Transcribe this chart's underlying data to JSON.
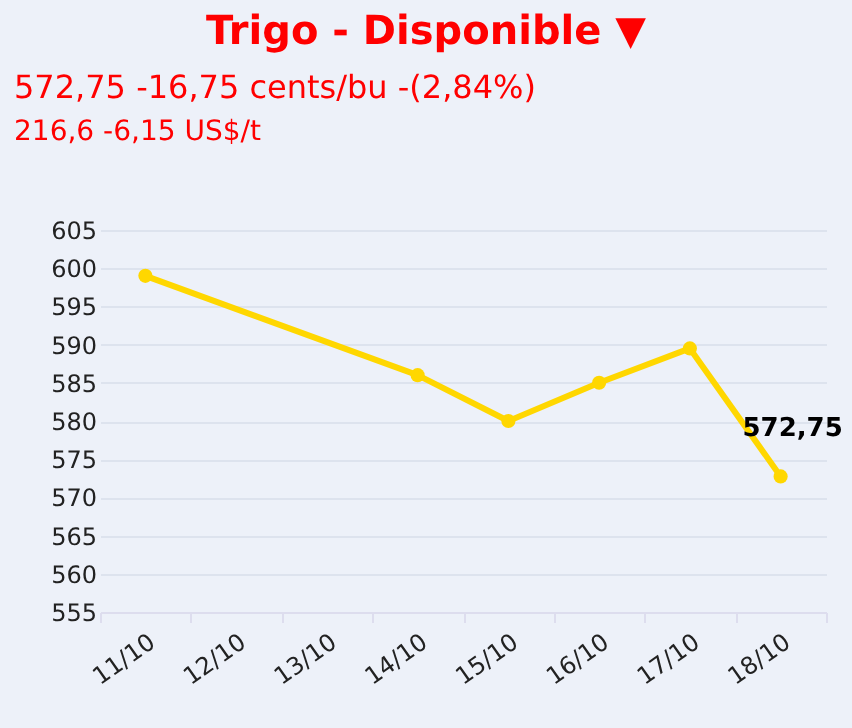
{
  "chart_data": {
    "type": "line",
    "title": "Trigo - Disponible ▼",
    "subtitle": "572,75 -16,75 cents/bu -(2,84%)",
    "annotations": [
      "216,6 -6,15 US$/t"
    ],
    "categories": [
      "11/10",
      "12/10",
      "13/10",
      "14/10",
      "15/10",
      "16/10",
      "17/10",
      "18/10"
    ],
    "series": [
      {
        "color": "#ffd700",
        "values": [
          599,
          null,
          null,
          586,
          580,
          585,
          589.5,
          572.75
        ]
      }
    ],
    "value_labels": [
      null,
      null,
      null,
      null,
      null,
      null,
      null,
      "572,75"
    ],
    "ylim": [
      555,
      605
    ],
    "yticks": [
      555,
      560,
      565,
      570,
      575,
      580,
      585,
      590,
      595,
      600,
      605
    ],
    "grid": "y",
    "marker": "circle",
    "line_style": "solid"
  }
}
